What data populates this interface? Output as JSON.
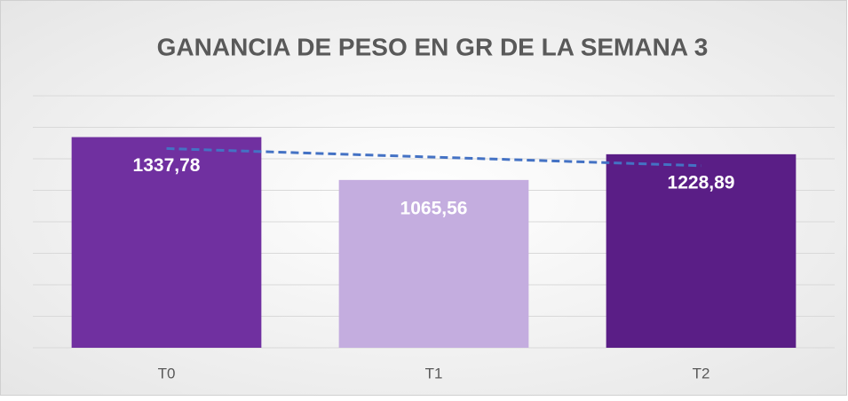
{
  "chart_data": {
    "type": "bar",
    "title": "GANANCIA DE PESO EN GR DE LA SEMANA 3",
    "categories": [
      "T0",
      "T1",
      "T2"
    ],
    "values": [
      1337.78,
      1065.56,
      1228.89
    ],
    "value_labels": [
      "1337,78",
      "1065,56",
      "1228,89"
    ],
    "colors": [
      "#7030a0",
      "#c4addf",
      "#5a1e86"
    ],
    "ylim": [
      0,
      1600
    ],
    "yticks": [
      0,
      200,
      400,
      600,
      800,
      1000,
      1200,
      1400,
      1600
    ],
    "grid": true,
    "trendline": true,
    "trendline_color": "#4472c4"
  }
}
